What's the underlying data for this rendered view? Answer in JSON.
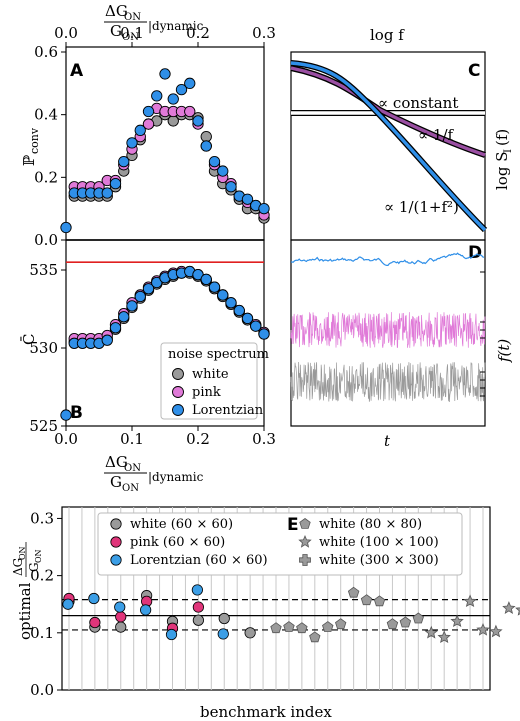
{
  "colors": {
    "white": "#9a9a9a",
    "pink": "#e07ad8",
    "lorentzian": "#2f8fe8",
    "pink_E": "#e0357a",
    "lorentzian_E": "#3b9ee6",
    "red_line": "#e02020",
    "purple_line": "#9a4fa2"
  },
  "top_axis": {
    "label_num": "ΔG",
    "label_num_sub": "ON",
    "label_den": "G",
    "label_den_sub": "ON",
    "label_suffix": "|dynamic",
    "ticks": [
      "0.0",
      "0.1",
      "0.2",
      "0.3"
    ]
  },
  "bottom_axis_AB": {
    "label_num": "ΔG",
    "label_num_sub": "ON",
    "label_den": "G",
    "label_den_sub": "ON",
    "label_suffix": "|dynamic",
    "ticks": [
      "0.0",
      "0.1",
      "0.2",
      "0.3"
    ]
  },
  "panel_labels": {
    "A": "A",
    "B": "B",
    "C": "C",
    "D": "D",
    "E": "E"
  },
  "chart_data": [
    {
      "panel": "A",
      "type": "scatter",
      "ylabel": "ℙ",
      "ylabel_sub": "conv",
      "xlim": [
        0.0,
        0.3
      ],
      "ylim": [
        0.0,
        0.6
      ],
      "yticks": [
        "0.0",
        "0.2",
        "0.4",
        "0.6"
      ],
      "x": [
        0.0,
        0.0125,
        0.025,
        0.0375,
        0.05,
        0.0625,
        0.075,
        0.0875,
        0.1,
        0.1125,
        0.125,
        0.1375,
        0.15,
        0.1625,
        0.175,
        0.1875,
        0.2,
        0.2125,
        0.225,
        0.2375,
        0.25,
        0.2625,
        0.275,
        0.2875,
        0.3
      ],
      "series": [
        {
          "name": "white",
          "values": [
            null,
            0.14,
            0.14,
            0.14,
            0.14,
            0.14,
            0.17,
            0.22,
            0.27,
            0.32,
            0.37,
            0.38,
            0.4,
            0.38,
            0.4,
            0.4,
            0.39,
            0.33,
            0.22,
            0.18,
            0.16,
            0.13,
            0.1,
            0.1,
            0.07
          ]
        },
        {
          "name": "pink",
          "values": [
            null,
            0.17,
            0.17,
            0.17,
            0.17,
            0.19,
            0.19,
            0.24,
            0.29,
            0.33,
            0.37,
            0.42,
            0.41,
            0.41,
            0.41,
            0.41,
            0.37,
            0.3,
            0.24,
            0.2,
            0.18,
            0.14,
            0.12,
            0.11,
            0.08
          ]
        },
        {
          "name": "Lorentzian",
          "values": [
            0.04,
            0.15,
            0.15,
            0.15,
            0.15,
            0.15,
            0.18,
            0.25,
            0.31,
            0.35,
            0.41,
            0.46,
            0.53,
            0.45,
            0.48,
            0.5,
            0.38,
            0.3,
            0.25,
            0.22,
            0.17,
            0.14,
            0.13,
            0.11,
            0.1
          ]
        }
      ]
    },
    {
      "panel": "B",
      "type": "scatter",
      "ylabel": "C̄",
      "xlim": [
        0.0,
        0.3
      ],
      "ylim": [
        525,
        535.5
      ],
      "yticks": [
        "525",
        "530",
        "535"
      ],
      "reference_line": 535.5,
      "x": [
        0.0,
        0.0125,
        0.025,
        0.0375,
        0.05,
        0.0625,
        0.075,
        0.0875,
        0.1,
        0.1125,
        0.125,
        0.1375,
        0.15,
        0.1625,
        0.175,
        0.1875,
        0.2,
        0.2125,
        0.225,
        0.2375,
        0.25,
        0.2625,
        0.275,
        0.2875,
        0.3
      ],
      "series": [
        {
          "name": "white",
          "values": [
            null,
            530.4,
            530.4,
            530.4,
            530.4,
            530.6,
            531.2,
            531.9,
            532.6,
            533.2,
            533.7,
            534.1,
            534.4,
            534.6,
            534.8,
            534.8,
            534.6,
            534.3,
            533.8,
            533.3,
            532.8,
            532.3,
            531.8,
            531.4,
            530.9
          ]
        },
        {
          "name": "pink",
          "values": [
            null,
            530.6,
            530.6,
            530.6,
            530.6,
            530.8,
            531.5,
            532.2,
            532.9,
            533.4,
            533.9,
            534.3,
            534.6,
            534.8,
            534.9,
            534.9,
            534.7,
            534.4,
            533.9,
            533.4,
            532.9,
            532.4,
            531.9,
            531.5,
            531.0
          ]
        },
        {
          "name": "Lorentzian",
          "values": [
            525.7,
            530.3,
            530.3,
            530.3,
            530.3,
            530.5,
            531.3,
            532.0,
            532.7,
            533.3,
            533.8,
            534.2,
            534.5,
            534.7,
            534.8,
            534.9,
            534.7,
            534.4,
            533.9,
            533.4,
            532.9,
            532.4,
            531.9,
            531.4,
            530.9
          ]
        }
      ],
      "legend": {
        "title": "noise spectrum",
        "entries": [
          "white",
          "pink",
          "Lorentzian"
        ],
        "placement": "bottom-right"
      }
    },
    {
      "panel": "C",
      "type": "line",
      "xlabel": "log f",
      "ylabel": "log S",
      "ylabel_sub": "I",
      "ylabel_suffix": "(f)",
      "annotations": [
        "∝ constant",
        "∝ 1/f",
        "∝ 1/(1+f²)"
      ],
      "series": [
        {
          "name": "white",
          "shape": "constant"
        },
        {
          "name": "pink",
          "shape": "1/f"
        },
        {
          "name": "Lorentzian",
          "shape": "1/(1+f^2)"
        }
      ]
    },
    {
      "panel": "D",
      "type": "line",
      "xlabel": "t",
      "ylabel": "f(t)",
      "series": [
        {
          "name": "Lorentzian",
          "character": "smooth slow fluctuation"
        },
        {
          "name": "pink",
          "character": "dense noise"
        },
        {
          "name": "white",
          "character": "dense noise"
        }
      ]
    },
    {
      "panel": "E",
      "type": "scatter",
      "xlabel": "benchmark index",
      "ylabel_prefix": "optimal",
      "ylabel_num": "ΔG",
      "ylabel_num_sub": "ON",
      "ylabel_den": "G",
      "ylabel_den_sub": "ON",
      "ylim": [
        0.0,
        0.32
      ],
      "yticks": [
        "0.0",
        "0.1",
        "0.2",
        "0.3"
      ],
      "hlines": {
        "solid": 0.13,
        "dashed": [
          0.105,
          0.158
        ]
      },
      "n_gridlines": 33,
      "legend_entries": [
        "white (60 × 60)",
        "pink (60 × 60)",
        "Lorentzian (60 × 60)",
        "white (80 × 80)",
        "white (100 × 100)",
        "white (300 × 300)"
      ],
      "series": [
        {
          "name": "white (60 × 60)",
          "marker": "circle",
          "x": [
            0,
            1,
            2,
            3,
            4,
            5,
            6,
            7
          ],
          "values": [
            0.155,
            0.11,
            0.11,
            0.165,
            0.12,
            0.122,
            0.125,
            0.1
          ]
        },
        {
          "name": "pink (60 × 60)",
          "marker": "circle",
          "x": [
            0,
            1,
            2,
            3,
            4,
            5
          ],
          "values": [
            0.16,
            0.118,
            0.128,
            0.155,
            0.108,
            0.145
          ]
        },
        {
          "name": "Lorentzian (60 × 60)",
          "marker": "circle",
          "x": [
            0,
            1,
            2,
            3,
            4,
            5,
            6
          ],
          "values": [
            0.15,
            0.16,
            0.145,
            0.14,
            0.097,
            0.175,
            0.098
          ]
        },
        {
          "name": "white (80 × 80)",
          "marker": "pentagon",
          "x": [
            8,
            9,
            10,
            11,
            12,
            13,
            14,
            15,
            16,
            17,
            18,
            19
          ],
          "values": [
            0.108,
            0.11,
            0.108,
            0.092,
            0.11,
            0.115,
            0.17,
            0.157,
            0.155,
            0.115,
            0.118,
            0.125
          ]
        },
        {
          "name": "white (100 × 100)",
          "marker": "star",
          "x": [
            20,
            21,
            22,
            23,
            24,
            25,
            26,
            27,
            28
          ],
          "values": [
            0.1,
            0.092,
            0.12,
            0.155,
            0.105,
            0.102,
            0.143,
            0.14,
            0.12
          ]
        },
        {
          "name": "white (300 × 300)",
          "marker": "cross",
          "x": [
            29
          ],
          "values": [
            0.146
          ]
        }
      ]
    }
  ]
}
